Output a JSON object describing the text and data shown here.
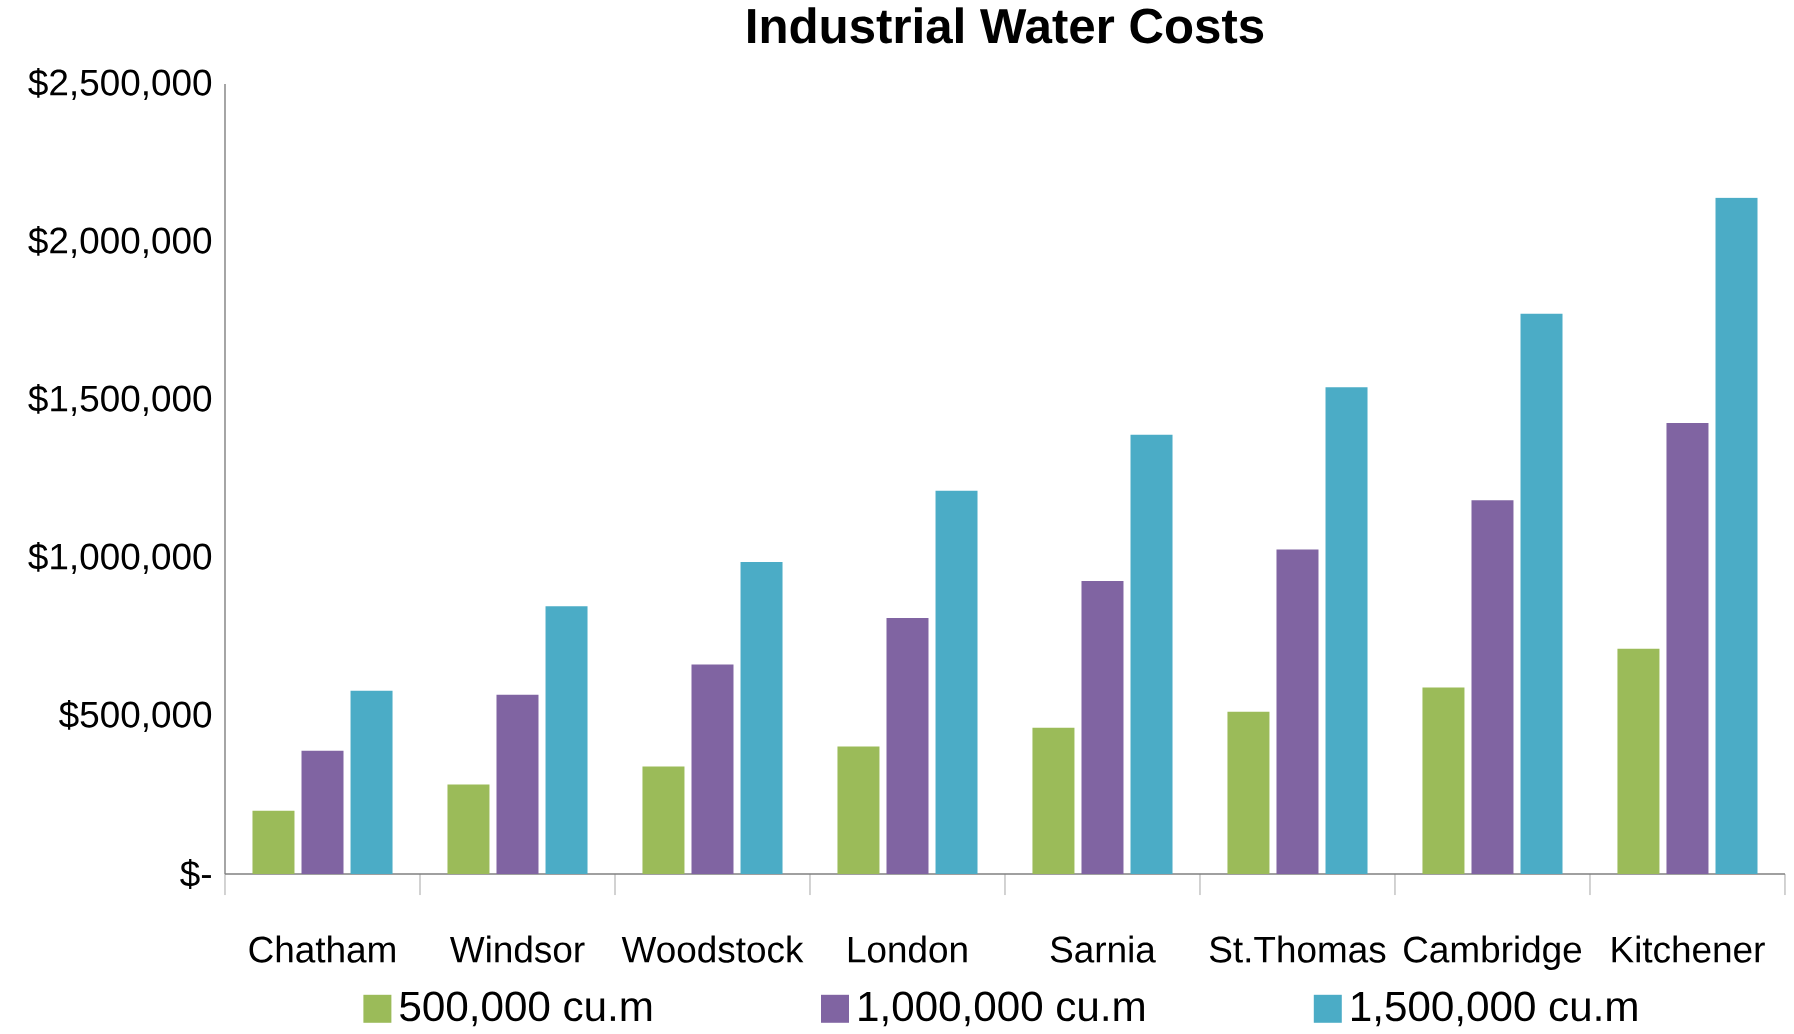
{
  "chart_data": {
    "type": "bar",
    "title": "Industrial Water Costs",
    "categories": [
      "Chatham",
      "Windsor",
      "Woodstock",
      "London",
      "Sarnia",
      "St.Thomas",
      "Cambridge",
      "Kitchener"
    ],
    "series": [
      {
        "name": "500,000 cu.m",
        "color": "#9bbb59",
        "values": [
          200000,
          283000,
          340000,
          403000,
          463000,
          513000,
          590000,
          713000
        ]
      },
      {
        "name": "1,000,000 cu.m",
        "color": "#8064a2",
        "values": [
          390000,
          567000,
          663000,
          810000,
          927000,
          1027000,
          1183000,
          1427000
        ]
      },
      {
        "name": "1,500,000 cu.m",
        "color": "#4bacc6",
        "values": [
          580000,
          847000,
          987000,
          1213000,
          1390000,
          1540000,
          1773000,
          2140000
        ]
      }
    ],
    "ylim": [
      0,
      2500000
    ],
    "yticks": [
      {
        "value": 0,
        "label": "$-"
      },
      {
        "value": 500000,
        "label": "$500,000"
      },
      {
        "value": 1000000,
        "label": "$1,000,000"
      },
      {
        "value": 1500000,
        "label": "$1,500,000"
      },
      {
        "value": 2000000,
        "label": "$2,000,000"
      },
      {
        "value": 2500000,
        "label": "$2,500,000"
      }
    ],
    "grid": false,
    "legend": "bottom"
  }
}
